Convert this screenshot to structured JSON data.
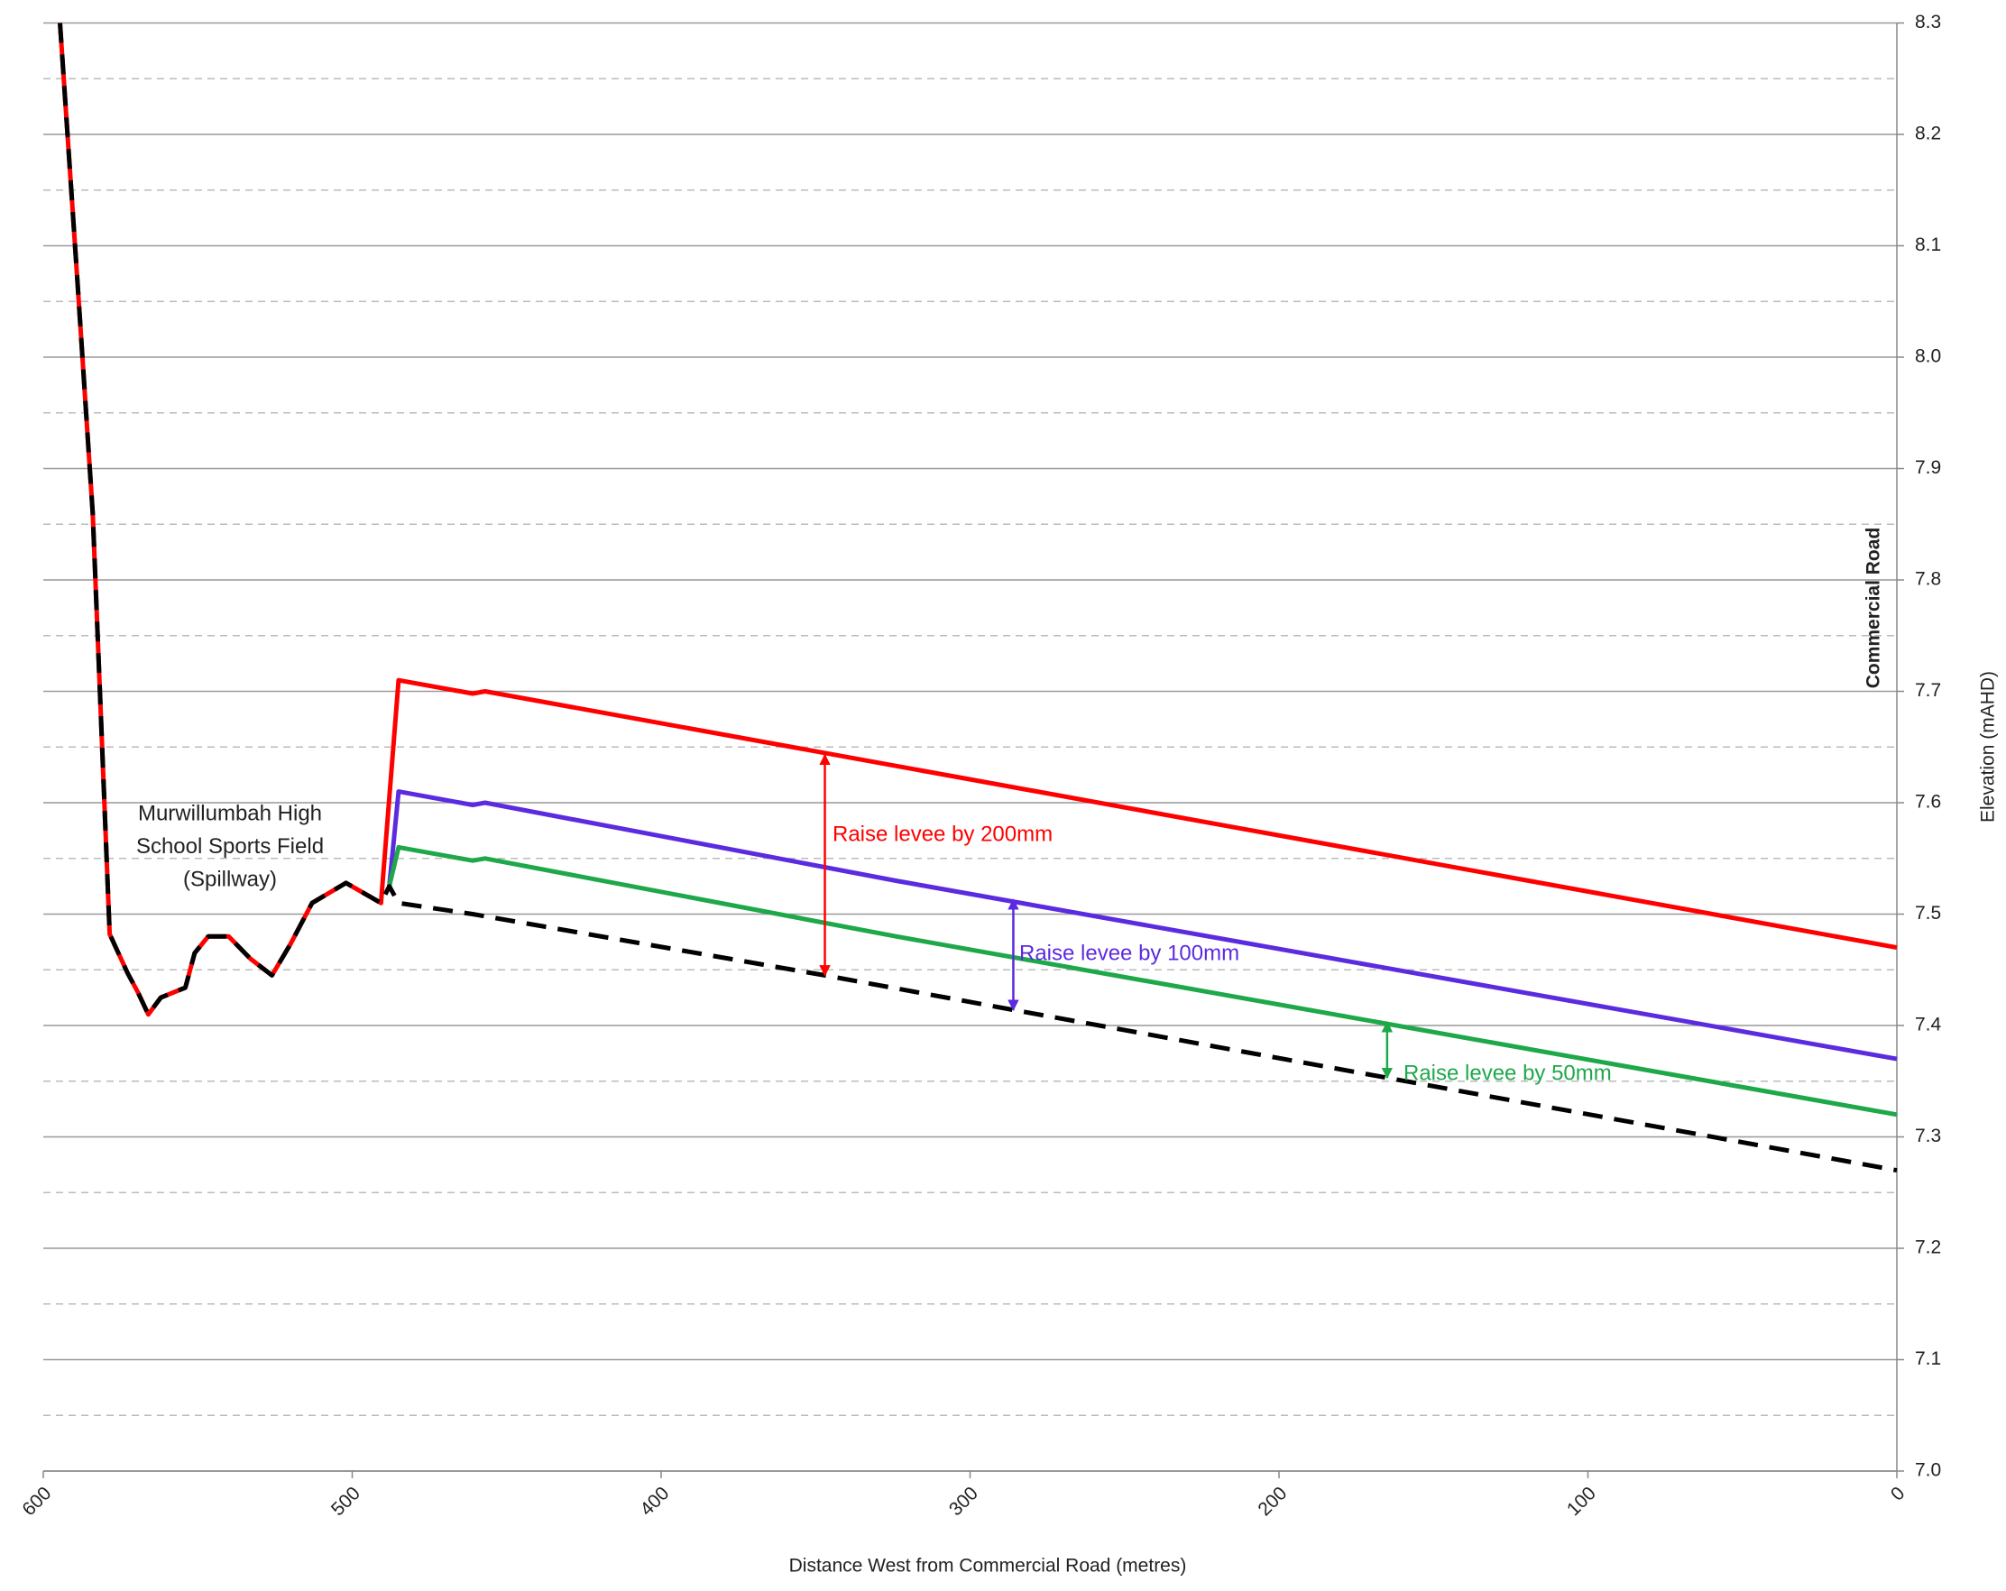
{
  "chart_data": {
    "type": "line",
    "xlabel": "Distance West from Commercial Road (metres)",
    "ylabel": "Elevation (mAHD)",
    "xlim": [
      600,
      0
    ],
    "xticks": [
      600,
      500,
      400,
      300,
      200,
      100,
      0
    ],
    "ylim": [
      7.0,
      8.3
    ],
    "yticks": [
      {
        "value": 7.0,
        "label": "7.0"
      },
      7.1,
      7.2,
      7.3,
      7.4,
      7.5,
      7.6,
      7.7,
      7.8,
      7.9,
      {
        "value": 8.0,
        "label": "8.0"
      },
      8.1,
      8.2,
      8.3
    ],
    "minor_grid": [
      7.05,
      7.15,
      7.25,
      7.35,
      7.45,
      7.55,
      7.65,
      7.75,
      7.85,
      7.95,
      8.05,
      8.15,
      8.25
    ],
    "grid": true,
    "series": [
      {
        "color": "#ff0000",
        "dash": false,
        "x": [
          594.6,
          589,
          584,
          578.5,
          572.7,
          569.4,
          566,
          562,
          554,
          551,
          546.6,
          540,
          533,
          526,
          520,
          513,
          502,
          490.7,
          485,
          461,
          457,
          0
        ],
        "values": [
          8.3,
          8.07,
          7.86,
          7.482,
          7.447,
          7.43,
          7.41,
          7.425,
          7.434,
          7.465,
          7.48,
          7.48,
          7.46,
          7.445,
          7.473,
          7.51,
          7.528,
          7.51,
          7.71,
          7.698,
          7.7,
          7.47
        ]
      },
      {
        "color": "#5b2be0",
        "dash": false,
        "x": [
          488,
          485,
          461,
          457,
          324,
          0
        ],
        "values": [
          7.525,
          7.61,
          7.598,
          7.6,
          7.53,
          7.37
        ]
      },
      {
        "color": "#1ea84a",
        "dash": false,
        "x": [
          488,
          485,
          461,
          457,
          324,
          0
        ],
        "values": [
          7.525,
          7.56,
          7.548,
          7.55,
          7.48,
          7.32
        ]
      },
      {
        "color": "#000000",
        "dash": true,
        "x": [
          594.6,
          589,
          584,
          578.5,
          572.7,
          569.4,
          566,
          562,
          554,
          551,
          546.6,
          540,
          533,
          526,
          520,
          513,
          502,
          490.7,
          488,
          485,
          461,
          347,
          286,
          165,
          0
        ],
        "values": [
          8.3,
          8.07,
          7.86,
          7.482,
          7.447,
          7.43,
          7.41,
          7.425,
          7.434,
          7.465,
          7.48,
          7.48,
          7.46,
          7.445,
          7.473,
          7.51,
          7.528,
          7.51,
          7.525,
          7.51,
          7.5,
          7.445,
          7.414,
          7.353,
          7.27
        ]
      }
    ],
    "arrows": [
      {
        "label": "Raise levee by 200mm",
        "color": "#ff0000",
        "x": 347,
        "y1": 7.445,
        "y2": 7.643
      },
      {
        "label": "Raise levee by 100mm",
        "color": "#5b2be0",
        "x": 286,
        "y1": 7.414,
        "y2": 7.513
      },
      {
        "label": "Raise levee by 50mm",
        "color": "#1ea84a",
        "x": 165,
        "y1": 7.353,
        "y2": 7.403
      }
    ],
    "annotations": [
      "Murwillumbah High",
      "School Sports Field",
      "(Spillway)"
    ],
    "side_label": "Commercial Road"
  }
}
